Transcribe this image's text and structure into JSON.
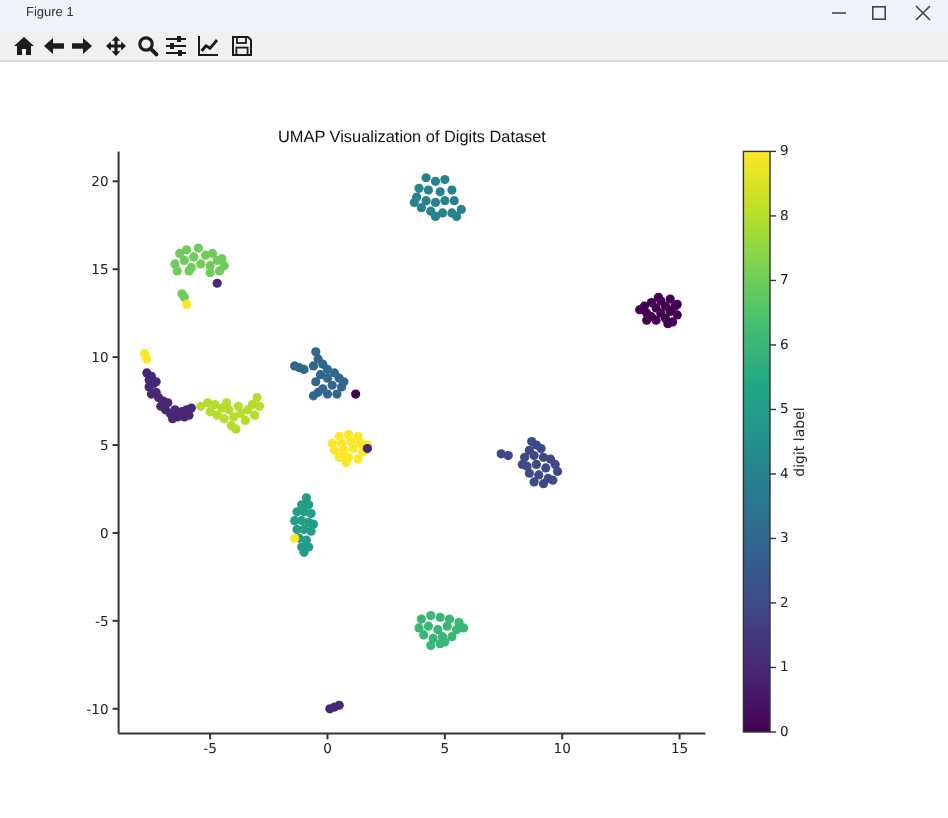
{
  "chart_data": {
    "type": "scatter",
    "title": "UMAP Visualization of Digits Dataset",
    "clabel": "digit label",
    "annotations": [
      "Figure 1"
    ],
    "x": [
      13.3,
      13.5,
      13.6,
      13.8,
      13.8,
      14.0,
      14.0,
      14.2,
      14.2,
      14.4,
      14.4,
      14.6,
      14.6,
      14.7,
      14.8,
      14.9,
      13.6,
      14.1,
      14.5,
      14.9,
      1.2,
      -7.7,
      -7.6,
      -7.5,
      -7.6,
      -7.4,
      -7.3,
      -7.5,
      -7.2,
      -7.0,
      -7.1,
      -6.9,
      -6.8,
      -6.7,
      -6.5,
      -6.4,
      -6.2,
      -6.1,
      -6.0,
      -5.9,
      -5.8,
      -6.6,
      -7.3,
      0.1,
      0.3,
      0.5,
      -4.7,
      8.7,
      8.9,
      9.1,
      8.6,
      8.4,
      8.8,
      9.2,
      9.5,
      9.7,
      8.5,
      8.9,
      9.3,
      9.8,
      8.6,
      9.0,
      9.4,
      8.8,
      9.2,
      9.6,
      8.3,
      7.4,
      7.7,
      -0.5,
      -0.4,
      -0.2,
      -0.6,
      -1.4,
      -1.2,
      -1.0,
      0.0,
      0.3,
      -0.3,
      0.0,
      0.5,
      -0.5,
      0.2,
      0.6,
      -0.2,
      0.4,
      0.0,
      -0.4,
      -0.6,
      0.7,
      4.2,
      4.6,
      5.0,
      3.9,
      4.3,
      4.8,
      5.3,
      3.8,
      4.2,
      4.6,
      5.0,
      5.4,
      5.7,
      4.0,
      4.4,
      4.9,
      5.3,
      4.6,
      5.5,
      3.7,
      -0.9,
      -1.1,
      -0.8,
      -1.3,
      -1.0,
      -0.7,
      -1.4,
      -1.1,
      -0.8,
      -1.3,
      -1.0,
      -0.7,
      -1.2,
      -0.9,
      -1.1,
      -0.8,
      -1.0,
      -0.6,
      4.0,
      4.4,
      4.8,
      5.2,
      5.6,
      3.9,
      4.3,
      4.7,
      5.1,
      5.5,
      5.8,
      4.1,
      4.5,
      4.9,
      5.3,
      4.4,
      4.8,
      5.0,
      -6.5,
      -6.3,
      -6.1,
      -6.0,
      -5.8,
      -5.7,
      -5.5,
      -5.4,
      -5.2,
      -5.0,
      -4.9,
      -4.7,
      -4.6,
      -4.5,
      -5.9,
      -6.4,
      -5.0,
      -4.4,
      -6.2,
      -6.1,
      -5.4,
      -5.1,
      -5.0,
      -4.8,
      -4.7,
      -4.5,
      -4.4,
      -4.2,
      -4.1,
      -4.0,
      -3.8,
      -3.7,
      -3.5,
      -3.4,
      -3.2,
      -3.1,
      -3.0,
      -2.9,
      -3.9,
      -4.3,
      0.5,
      0.9,
      1.3,
      0.2,
      0.6,
      1.0,
      1.4,
      1.7,
      0.3,
      0.7,
      1.1,
      1.5,
      0.5,
      0.9,
      1.3,
      0.8,
      -1.4,
      -6.0,
      -7.8,
      -7.7,
      1.7
    ],
    "values": [
      12.7,
      12.9,
      12.5,
      13.1,
      12.3,
      12.8,
      12.1,
      13.2,
      12.5,
      12.9,
      12.2,
      13.3,
      12.6,
      12.0,
      12.9,
      12.4,
      12.1,
      13.4,
      11.9,
      13.0,
      7.9,
      9.1,
      8.7,
      8.9,
      8.3,
      8.5,
      8.0,
      7.9,
      7.7,
      7.5,
      7.2,
      7.0,
      7.4,
      6.8,
      7.0,
      6.6,
      6.9,
      6.6,
      7.0,
      6.7,
      7.1,
      6.5,
      8.6,
      -10.0,
      -9.9,
      -9.8,
      14.2,
      5.2,
      5.0,
      4.8,
      4.7,
      4.3,
      4.4,
      4.3,
      4.2,
      3.9,
      3.8,
      3.9,
      3.7,
      3.5,
      3.4,
      3.3,
      3.1,
      2.9,
      2.8,
      3.0,
      3.9,
      4.5,
      4.4,
      10.3,
      9.9,
      9.6,
      9.5,
      9.5,
      9.4,
      9.3,
      9.3,
      9.1,
      9.0,
      8.8,
      8.8,
      8.6,
      8.4,
      8.3,
      8.2,
      7.9,
      7.9,
      8.0,
      7.8,
      8.6,
      20.2,
      20.0,
      20.1,
      19.6,
      19.5,
      19.4,
      19.5,
      19.1,
      18.9,
      18.8,
      18.9,
      18.9,
      18.4,
      18.5,
      18.3,
      18.2,
      18.2,
      18.0,
      18.0,
      18.8,
      2.0,
      1.6,
      1.6,
      1.2,
      1.2,
      1.1,
      0.7,
      0.7,
      0.6,
      0.2,
      0.2,
      0.1,
      -0.3,
      -0.4,
      -0.8,
      -0.8,
      -1.1,
      0.5,
      -4.9,
      -4.7,
      -4.8,
      -4.9,
      -5.1,
      -5.4,
      -5.3,
      -5.5,
      -5.3,
      -5.5,
      -5.4,
      -5.8,
      -6.0,
      -5.9,
      -5.9,
      -6.4,
      -6.3,
      -6.2,
      15.3,
      15.9,
      15.5,
      16.1,
      15.1,
      15.7,
      16.2,
      15.3,
      15.8,
      15.2,
      15.9,
      15.5,
      14.9,
      15.6,
      14.9,
      14.9,
      14.8,
      15.2,
      13.6,
      13.4,
      7.2,
      7.4,
      6.9,
      7.3,
      6.7,
      7.1,
      6.5,
      7.0,
      6.1,
      6.6,
      7.2,
      6.8,
      6.4,
      7.0,
      7.3,
      6.7,
      7.7,
      7.2,
      5.9,
      7.4,
      5.5,
      5.6,
      5.5,
      5.1,
      5.1,
      5.2,
      5.1,
      5.0,
      4.7,
      4.7,
      4.8,
      4.6,
      4.3,
      4.3,
      4.2,
      4.0,
      -0.3,
      13.0,
      10.2,
      9.9,
      4.8
    ],
    "cvalues": [
      0,
      0,
      0,
      0,
      0,
      0,
      0,
      0,
      0,
      0,
      0,
      0,
      0,
      0,
      0,
      0,
      0,
      0,
      0,
      0,
      0,
      1,
      1,
      1,
      1,
      1,
      1,
      1,
      1,
      1,
      1,
      1,
      1,
      1,
      1,
      1,
      1,
      1,
      1,
      1,
      1,
      1,
      1,
      1,
      1,
      1,
      1,
      2,
      2,
      2,
      2,
      2,
      2,
      2,
      2,
      2,
      2,
      2,
      2,
      2,
      2,
      2,
      2,
      2,
      2,
      2,
      2,
      2,
      2,
      3,
      3,
      3,
      3,
      3,
      3,
      3,
      3,
      3,
      3,
      3,
      3,
      3,
      3,
      3,
      3,
      3,
      3,
      3,
      3,
      3,
      4,
      4,
      4,
      4,
      4,
      4,
      4,
      4,
      4,
      4,
      4,
      4,
      4,
      4,
      4,
      4,
      4,
      4,
      4,
      4,
      5,
      5,
      5,
      5,
      5,
      5,
      5,
      5,
      5,
      5,
      5,
      5,
      5,
      5,
      5,
      5,
      5,
      5,
      6,
      6,
      6,
      6,
      6,
      6,
      6,
      6,
      6,
      6,
      6,
      6,
      6,
      6,
      6,
      6,
      6,
      6,
      7,
      7,
      7,
      7,
      7,
      7,
      7,
      7,
      7,
      7,
      7,
      7,
      7,
      7,
      7,
      7,
      7,
      7,
      7,
      7,
      8,
      8,
      8,
      8,
      8,
      8,
      8,
      8,
      8,
      8,
      8,
      8,
      8,
      8,
      8,
      8,
      8,
      8,
      8,
      8,
      9,
      9,
      9,
      9,
      9,
      9,
      9,
      9,
      9,
      9,
      9,
      9,
      9,
      9,
      9,
      9,
      9,
      9,
      9,
      9,
      1
    ],
    "xlim": [
      -8.9,
      16.1
    ],
    "ylim": [
      -11.4,
      21.7
    ],
    "xticks": [
      -5,
      0,
      5,
      10,
      15
    ],
    "yticks": [
      -10,
      -5,
      0,
      5,
      10,
      15,
      20
    ],
    "clim": [
      0,
      9
    ],
    "cticks": [
      0,
      1,
      2,
      3,
      4,
      5,
      6,
      7,
      8,
      9
    ],
    "marker": "circle"
  }
}
